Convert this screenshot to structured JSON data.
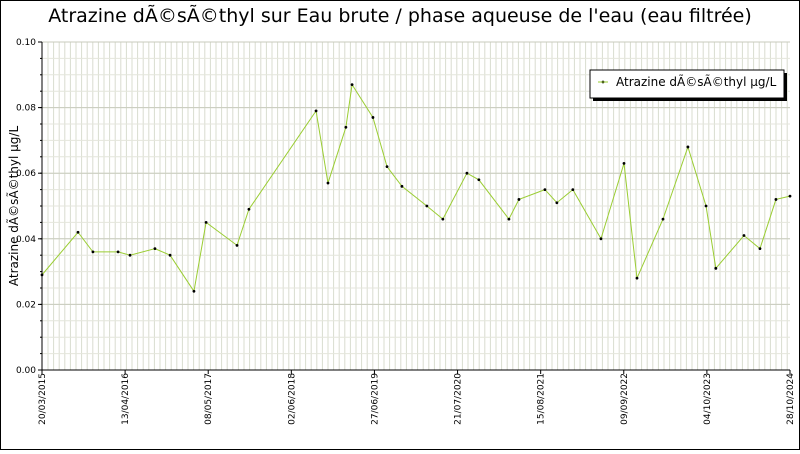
{
  "chart_data": {
    "type": "line",
    "title": "Atrazine dÃ©sÃ©thyl sur Eau brute / phase aqueuse de l'eau (eau filtrée)",
    "y_label": "Atrazine dÃ©sÃ©thyl µg/L",
    "x": [
      "20/03/2015",
      "05/09/2015",
      "14/11/2015",
      "11/03/2016",
      "06/05/2016",
      "31/08/2016",
      "10/11/2016",
      "02/03/2017",
      "28/04/2017",
      "20/09/2017",
      "15/11/2017",
      "26/09/2018",
      "21/11/2018",
      "13/02/2019",
      "14/03/2019",
      "20/06/2019",
      "25/08/2019",
      "03/11/2019",
      "28/02/2020",
      "13/05/2020",
      "03/09/2020",
      "29/10/2020",
      "19/03/2021",
      "05/05/2021",
      "04/09/2021",
      "30/10/2021",
      "13/01/2022",
      "25/05/2022",
      "10/09/2022",
      "10/11/2022",
      "12/03/2023",
      "07/07/2023",
      "30/09/2023",
      "15/11/2023",
      "26/03/2024",
      "09/06/2024",
      "23/08/2024",
      "28/10/2024"
    ],
    "series": [
      {
        "name": "Atrazine dÃ©sÃ©thyl µg/L",
        "color": "#9acd32",
        "values": [
          0.029,
          0.042,
          0.036,
          0.036,
          0.035,
          0.037,
          0.035,
          0.024,
          0.045,
          0.038,
          0.049,
          0.079,
          0.057,
          0.074,
          0.087,
          0.077,
          0.062,
          0.056,
          0.05,
          0.046,
          0.06,
          0.058,
          0.046,
          0.052,
          0.055,
          0.051,
          0.055,
          0.04,
          0.063,
          0.028,
          0.046,
          0.068,
          0.05,
          0.031,
          0.041,
          0.037,
          0.052,
          0.053
        ]
      }
    ],
    "xlim": [
      "20/03/2015",
      "28/10/2024"
    ],
    "xticks": [
      "20/03/2015",
      "13/04/2016",
      "08/05/2017",
      "02/06/2018",
      "27/06/2019",
      "21/07/2020",
      "15/08/2021",
      "09/09/2022",
      "04/10/2023",
      "28/10/2024"
    ],
    "ylim": [
      0,
      0.1
    ],
    "yticks": [
      {
        "value": 0,
        "label": "0.00"
      },
      0.02,
      0.04,
      0.06,
      0.08,
      {
        "value": 0.1,
        "label": "0.10"
      }
    ],
    "grid": true,
    "legend": "top-right"
  }
}
